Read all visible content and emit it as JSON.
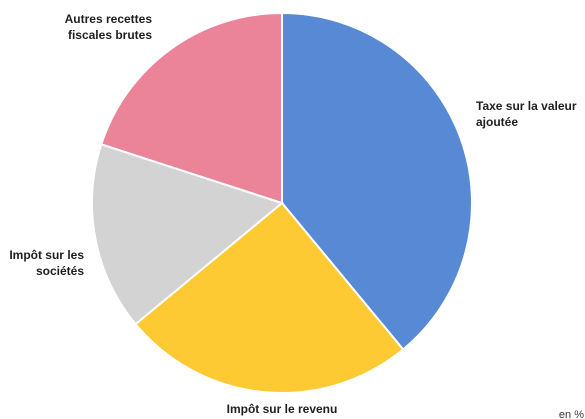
{
  "chart_data": {
    "type": "pie",
    "unit": "en %",
    "slices": [
      {
        "label": "Taxe sur la valeur ajoutée",
        "label_lines": [
          "Taxe sur la valeur",
          "ajoutée"
        ],
        "value": 39,
        "color": "#5789d4"
      },
      {
        "label": "Impôt sur le revenu",
        "label_lines": [
          "Impôt sur le revenu"
        ],
        "value": 25,
        "color": "#fdca34"
      },
      {
        "label": "Impôt sur les sociétés",
        "label_lines": [
          "Impôt sur les",
          "sociétés"
        ],
        "value": 16,
        "color": "#d3d3d3"
      },
      {
        "label": "Autres recettes fiscales brutes",
        "label_lines": [
          "Autres recettes",
          "fiscales brutes"
        ],
        "value": 20,
        "color": "#ec8499"
      }
    ]
  }
}
